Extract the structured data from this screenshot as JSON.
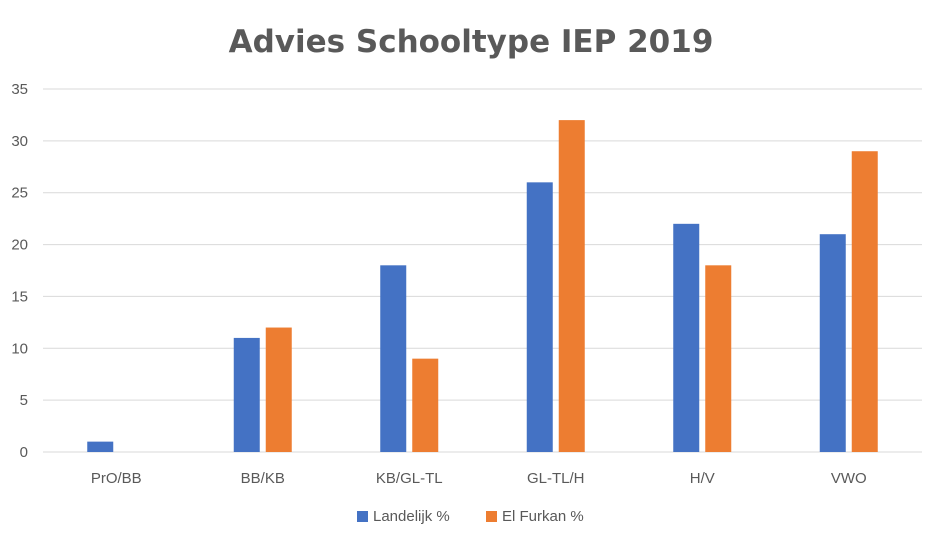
{
  "chart_data": {
    "type": "bar",
    "title": "Advies Schooltype IEP 2019",
    "xlabel": "",
    "ylabel": "",
    "categories": [
      "PrO/BB",
      "BB/KB",
      "KB/GL-TL",
      "GL-TL/H",
      "H/V",
      "VWO"
    ],
    "series": [
      {
        "name": "Landelijk %",
        "color": "#4472C4",
        "values": [
          1,
          11,
          18,
          26,
          22,
          21
        ]
      },
      {
        "name": "El Furkan %",
        "color": "#ED7D31",
        "values": [
          0,
          12,
          9,
          32,
          18,
          29
        ]
      }
    ],
    "ylim": [
      0,
      35
    ],
    "yticks": [
      0,
      5,
      10,
      15,
      20,
      25,
      30,
      35
    ],
    "grid": true,
    "legend_position": "bottom"
  }
}
